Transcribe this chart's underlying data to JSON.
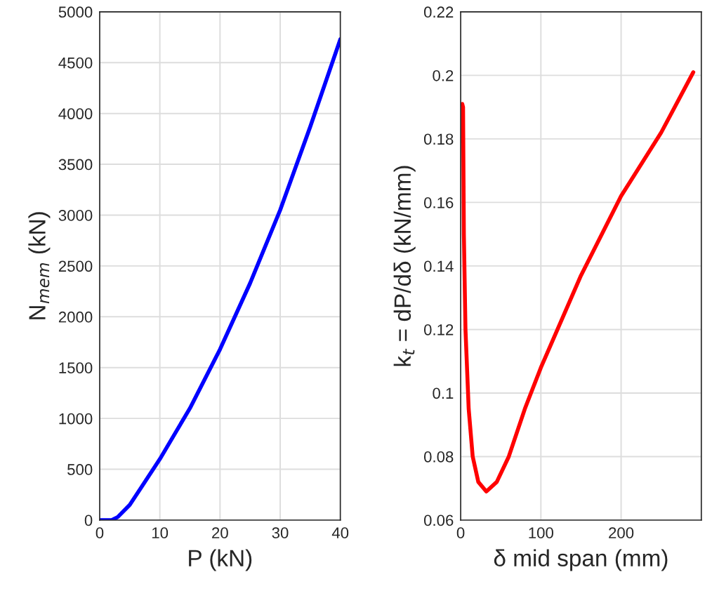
{
  "chart_data": [
    {
      "type": "line",
      "xlabel": "P (kN)",
      "ylabel": "N$_{mem}$ (kN)",
      "xlim": [
        0,
        40
      ],
      "xticks": [
        0,
        10,
        20,
        30,
        40
      ],
      "ylim": [
        0,
        5000
      ],
      "yticks": [
        0,
        500,
        1000,
        1500,
        2000,
        2500,
        3000,
        3500,
        4000,
        4500,
        5000
      ],
      "grid": true,
      "legend": false,
      "series": [
        {
          "color": "#0000ff",
          "x": [
            0,
            2,
            3,
            5,
            7,
            10,
            15,
            20,
            25,
            30,
            35,
            40
          ],
          "values": [
            0,
            0,
            30,
            150,
            330,
            600,
            1100,
            1680,
            2330,
            3050,
            3870,
            4730
          ]
        }
      ]
    },
    {
      "type": "line",
      "xlabel": "δ mid span (mm)",
      "ylabel": "k$_{t}$ = dP/dδ (kN/mm)",
      "xlim": [
        0,
        300
      ],
      "xticks": [
        0,
        100,
        200
      ],
      "ylim": [
        0.06,
        0.22
      ],
      "yticks": [
        0.06,
        0.08,
        0.1,
        0.12,
        0.14,
        0.16,
        0.18,
        0.2,
        0.22
      ],
      "grid": true,
      "legend": false,
      "series": [
        {
          "color": "#ff0000",
          "x": [
            2,
            3,
            4,
            6,
            10,
            15,
            22,
            32,
            45,
            60,
            80,
            100,
            150,
            200,
            250,
            290
          ],
          "values": [
            0.191,
            0.19,
            0.15,
            0.12,
            0.095,
            0.08,
            0.072,
            0.069,
            0.072,
            0.08,
            0.095,
            0.108,
            0.137,
            0.162,
            0.182,
            0.201
          ]
        }
      ]
    }
  ]
}
